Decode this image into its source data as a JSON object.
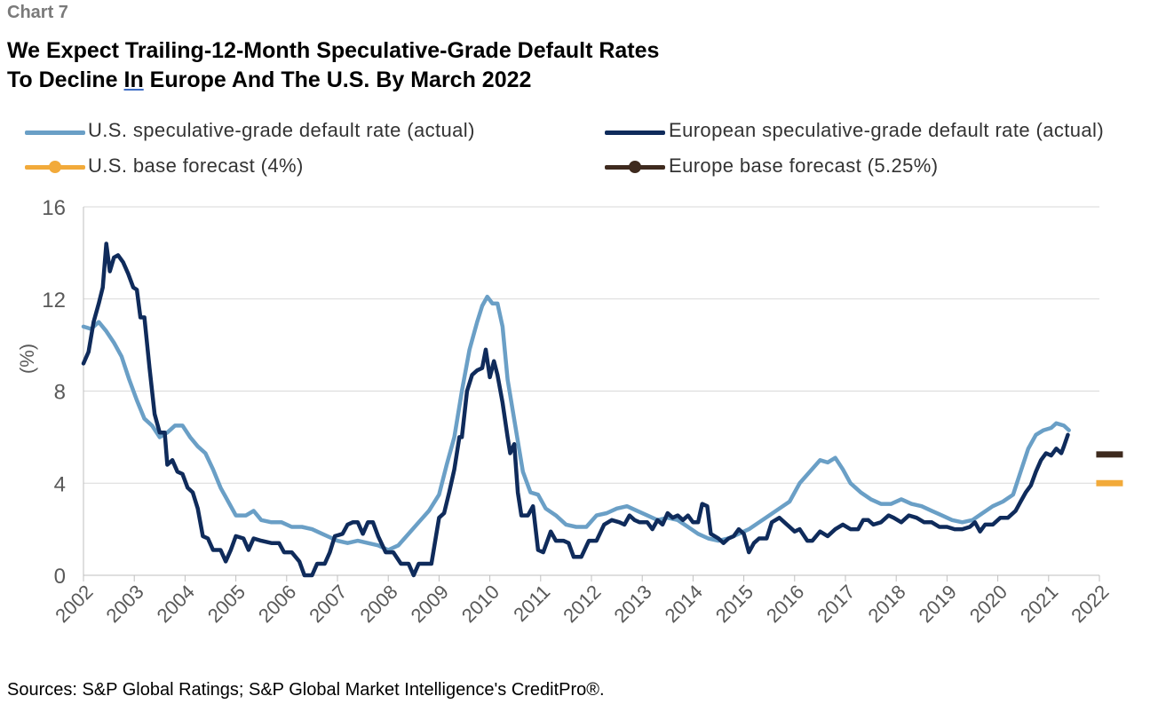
{
  "header": {
    "chart_label": "Chart 7",
    "title_line1": "We Expect Trailing-12-Month Speculative-Grade Default Rates",
    "title_line2": "To Decline In Europe And The U.S. By March 2022"
  },
  "legend": {
    "us_actual": "U.S. speculative-grade default rate (actual)",
    "eu_actual": "European speculative-grade default rate (actual)",
    "us_forecast": "U.S. base forecast (4%)",
    "eu_forecast": "Europe base forecast (5.25%)"
  },
  "footer": {
    "source": "Sources: S&P Global Ratings; S&P Global Market Intelligence's CreditPro®."
  },
  "colors": {
    "us": "#6a9fc6",
    "eu": "#0f2b5b",
    "us_forecast": "#f2aa3a",
    "eu_forecast": "#3e2a1e",
    "grid": "#d9d9d9",
    "axis_text": "#595959"
  },
  "chart_data": {
    "type": "line",
    "ylabel": "(%)",
    "xlabel": "",
    "ylim": [
      0,
      16
    ],
    "yticks": [
      0,
      4,
      8,
      12,
      16
    ],
    "xlim": [
      2002,
      2022
    ],
    "xticks": [
      2002,
      2003,
      2004,
      2005,
      2006,
      2007,
      2008,
      2009,
      2010,
      2011,
      2012,
      2013,
      2014,
      2015,
      2016,
      2017,
      2018,
      2019,
      2020,
      2021,
      2022
    ],
    "grid": true,
    "legend_position": "top",
    "series": [
      {
        "name": "U.S. speculative-grade default rate (actual)",
        "points": [
          [
            2002.0,
            10.8
          ],
          [
            2002.15,
            10.7
          ],
          [
            2002.3,
            11.0
          ],
          [
            2002.45,
            10.6
          ],
          [
            2002.6,
            10.1
          ],
          [
            2002.75,
            9.5
          ],
          [
            2002.9,
            8.5
          ],
          [
            2003.05,
            7.6
          ],
          [
            2003.2,
            6.8
          ],
          [
            2003.35,
            6.5
          ],
          [
            2003.5,
            6.0
          ],
          [
            2003.65,
            6.2
          ],
          [
            2003.8,
            6.5
          ],
          [
            2003.95,
            6.5
          ],
          [
            2004.1,
            6.0
          ],
          [
            2004.25,
            5.6
          ],
          [
            2004.4,
            5.3
          ],
          [
            2004.55,
            4.6
          ],
          [
            2004.7,
            3.8
          ],
          [
            2004.85,
            3.2
          ],
          [
            2005.0,
            2.6
          ],
          [
            2005.2,
            2.6
          ],
          [
            2005.35,
            2.8
          ],
          [
            2005.5,
            2.4
          ],
          [
            2005.7,
            2.3
          ],
          [
            2005.9,
            2.3
          ],
          [
            2006.1,
            2.1
          ],
          [
            2006.3,
            2.1
          ],
          [
            2006.5,
            2.0
          ],
          [
            2006.7,
            1.8
          ],
          [
            2006.9,
            1.6
          ],
          [
            2007.0,
            1.5
          ],
          [
            2007.2,
            1.4
          ],
          [
            2007.4,
            1.5
          ],
          [
            2007.6,
            1.4
          ],
          [
            2007.8,
            1.3
          ],
          [
            2008.0,
            1.1
          ],
          [
            2008.2,
            1.3
          ],
          [
            2008.4,
            1.8
          ],
          [
            2008.6,
            2.3
          ],
          [
            2008.8,
            2.8
          ],
          [
            2009.0,
            3.5
          ],
          [
            2009.15,
            4.8
          ],
          [
            2009.3,
            6.0
          ],
          [
            2009.45,
            8.0
          ],
          [
            2009.6,
            9.8
          ],
          [
            2009.75,
            11.0
          ],
          [
            2009.85,
            11.7
          ],
          [
            2009.95,
            12.1
          ],
          [
            2010.05,
            11.8
          ],
          [
            2010.15,
            11.8
          ],
          [
            2010.25,
            10.8
          ],
          [
            2010.35,
            8.5
          ],
          [
            2010.5,
            6.5
          ],
          [
            2010.65,
            4.5
          ],
          [
            2010.8,
            3.6
          ],
          [
            2010.95,
            3.5
          ],
          [
            2011.1,
            2.9
          ],
          [
            2011.3,
            2.6
          ],
          [
            2011.5,
            2.2
          ],
          [
            2011.7,
            2.1
          ],
          [
            2011.9,
            2.1
          ],
          [
            2012.1,
            2.6
          ],
          [
            2012.3,
            2.7
          ],
          [
            2012.5,
            2.9
          ],
          [
            2012.7,
            3.0
          ],
          [
            2012.9,
            2.8
          ],
          [
            2013.1,
            2.6
          ],
          [
            2013.3,
            2.4
          ],
          [
            2013.5,
            2.5
          ],
          [
            2013.7,
            2.4
          ],
          [
            2013.9,
            2.1
          ],
          [
            2014.1,
            1.8
          ],
          [
            2014.3,
            1.6
          ],
          [
            2014.5,
            1.5
          ],
          [
            2014.7,
            1.6
          ],
          [
            2014.9,
            1.8
          ],
          [
            2015.1,
            2.0
          ],
          [
            2015.3,
            2.3
          ],
          [
            2015.5,
            2.6
          ],
          [
            2015.7,
            2.9
          ],
          [
            2015.9,
            3.2
          ],
          [
            2016.1,
            4.0
          ],
          [
            2016.3,
            4.5
          ],
          [
            2016.5,
            5.0
          ],
          [
            2016.65,
            4.9
          ],
          [
            2016.8,
            5.1
          ],
          [
            2016.95,
            4.6
          ],
          [
            2017.1,
            4.0
          ],
          [
            2017.3,
            3.6
          ],
          [
            2017.5,
            3.3
          ],
          [
            2017.7,
            3.1
          ],
          [
            2017.9,
            3.1
          ],
          [
            2018.1,
            3.3
          ],
          [
            2018.3,
            3.1
          ],
          [
            2018.5,
            3.0
          ],
          [
            2018.7,
            2.8
          ],
          [
            2018.9,
            2.6
          ],
          [
            2019.1,
            2.4
          ],
          [
            2019.3,
            2.3
          ],
          [
            2019.5,
            2.4
          ],
          [
            2019.7,
            2.7
          ],
          [
            2019.9,
            3.0
          ],
          [
            2020.1,
            3.2
          ],
          [
            2020.3,
            3.5
          ],
          [
            2020.45,
            4.5
          ],
          [
            2020.6,
            5.5
          ],
          [
            2020.75,
            6.1
          ],
          [
            2020.9,
            6.3
          ],
          [
            2021.05,
            6.4
          ],
          [
            2021.15,
            6.6
          ],
          [
            2021.3,
            6.5
          ],
          [
            2021.4,
            6.3
          ]
        ]
      },
      {
        "name": "European speculative-grade default rate (actual)",
        "points": [
          [
            2002.0,
            9.2
          ],
          [
            2002.1,
            9.7
          ],
          [
            2002.2,
            11.0
          ],
          [
            2002.3,
            11.8
          ],
          [
            2002.38,
            12.5
          ],
          [
            2002.45,
            14.4
          ],
          [
            2002.52,
            13.2
          ],
          [
            2002.6,
            13.8
          ],
          [
            2002.68,
            13.9
          ],
          [
            2002.78,
            13.6
          ],
          [
            2002.88,
            13.1
          ],
          [
            2002.98,
            12.5
          ],
          [
            2003.05,
            12.4
          ],
          [
            2003.12,
            11.2
          ],
          [
            2003.2,
            11.2
          ],
          [
            2003.3,
            9.0
          ],
          [
            2003.4,
            7.0
          ],
          [
            2003.5,
            6.2
          ],
          [
            2003.6,
            6.2
          ],
          [
            2003.65,
            4.8
          ],
          [
            2003.75,
            5.0
          ],
          [
            2003.85,
            4.5
          ],
          [
            2003.95,
            4.4
          ],
          [
            2004.05,
            3.8
          ],
          [
            2004.15,
            3.6
          ],
          [
            2004.25,
            2.9
          ],
          [
            2004.35,
            1.7
          ],
          [
            2004.45,
            1.6
          ],
          [
            2004.55,
            1.1
          ],
          [
            2004.7,
            1.1
          ],
          [
            2004.8,
            0.6
          ],
          [
            2004.9,
            1.1
          ],
          [
            2005.0,
            1.7
          ],
          [
            2005.15,
            1.6
          ],
          [
            2005.25,
            1.1
          ],
          [
            2005.35,
            1.6
          ],
          [
            2005.5,
            1.5
          ],
          [
            2005.7,
            1.4
          ],
          [
            2005.85,
            1.4
          ],
          [
            2005.95,
            1.0
          ],
          [
            2006.1,
            1.0
          ],
          [
            2006.25,
            0.6
          ],
          [
            2006.35,
            0.0
          ],
          [
            2006.5,
            0.0
          ],
          [
            2006.6,
            0.5
          ],
          [
            2006.75,
            0.5
          ],
          [
            2006.85,
            1.0
          ],
          [
            2006.95,
            1.7
          ],
          [
            2007.1,
            1.8
          ],
          [
            2007.2,
            2.2
          ],
          [
            2007.3,
            2.3
          ],
          [
            2007.4,
            2.3
          ],
          [
            2007.5,
            1.8
          ],
          [
            2007.6,
            2.3
          ],
          [
            2007.7,
            2.3
          ],
          [
            2007.8,
            1.7
          ],
          [
            2007.95,
            1.0
          ],
          [
            2008.1,
            1.0
          ],
          [
            2008.25,
            0.5
          ],
          [
            2008.4,
            0.5
          ],
          [
            2008.5,
            0.0
          ],
          [
            2008.6,
            0.5
          ],
          [
            2008.75,
            0.5
          ],
          [
            2008.85,
            0.5
          ],
          [
            2009.0,
            2.5
          ],
          [
            2009.1,
            2.7
          ],
          [
            2009.2,
            3.6
          ],
          [
            2009.3,
            4.6
          ],
          [
            2009.4,
            6.0
          ],
          [
            2009.45,
            6.0
          ],
          [
            2009.55,
            8.0
          ],
          [
            2009.65,
            8.7
          ],
          [
            2009.75,
            8.9
          ],
          [
            2009.85,
            9.0
          ],
          [
            2009.92,
            9.8
          ],
          [
            2010.0,
            8.6
          ],
          [
            2010.08,
            9.3
          ],
          [
            2010.15,
            8.7
          ],
          [
            2010.25,
            7.5
          ],
          [
            2010.35,
            6.0
          ],
          [
            2010.4,
            5.3
          ],
          [
            2010.48,
            5.7
          ],
          [
            2010.55,
            3.6
          ],
          [
            2010.62,
            2.6
          ],
          [
            2010.75,
            2.6
          ],
          [
            2010.85,
            3.0
          ],
          [
            2010.95,
            1.1
          ],
          [
            2011.05,
            1.0
          ],
          [
            2011.2,
            1.9
          ],
          [
            2011.3,
            1.5
          ],
          [
            2011.45,
            1.5
          ],
          [
            2011.55,
            1.4
          ],
          [
            2011.65,
            0.8
          ],
          [
            2011.8,
            0.8
          ],
          [
            2011.95,
            1.5
          ],
          [
            2012.1,
            1.5
          ],
          [
            2012.25,
            2.2
          ],
          [
            2012.4,
            2.4
          ],
          [
            2012.55,
            2.3
          ],
          [
            2012.65,
            2.2
          ],
          [
            2012.75,
            2.6
          ],
          [
            2012.85,
            2.4
          ],
          [
            2012.95,
            2.3
          ],
          [
            2013.1,
            2.3
          ],
          [
            2013.2,
            2.0
          ],
          [
            2013.3,
            2.4
          ],
          [
            2013.4,
            2.2
          ],
          [
            2013.5,
            2.7
          ],
          [
            2013.6,
            2.5
          ],
          [
            2013.7,
            2.6
          ],
          [
            2013.8,
            2.4
          ],
          [
            2013.9,
            2.6
          ],
          [
            2014.0,
            2.3
          ],
          [
            2014.1,
            2.3
          ],
          [
            2014.18,
            3.1
          ],
          [
            2014.28,
            3.0
          ],
          [
            2014.35,
            1.8
          ],
          [
            2014.5,
            1.6
          ],
          [
            2014.6,
            1.4
          ],
          [
            2014.7,
            1.6
          ],
          [
            2014.8,
            1.7
          ],
          [
            2014.9,
            2.0
          ],
          [
            2015.0,
            1.8
          ],
          [
            2015.1,
            1.0
          ],
          [
            2015.2,
            1.4
          ],
          [
            2015.3,
            1.6
          ],
          [
            2015.45,
            1.6
          ],
          [
            2015.55,
            2.3
          ],
          [
            2015.7,
            2.5
          ],
          [
            2015.85,
            2.2
          ],
          [
            2016.0,
            1.9
          ],
          [
            2016.1,
            2.0
          ],
          [
            2016.25,
            1.5
          ],
          [
            2016.35,
            1.5
          ],
          [
            2016.5,
            1.9
          ],
          [
            2016.65,
            1.7
          ],
          [
            2016.8,
            2.0
          ],
          [
            2016.95,
            2.2
          ],
          [
            2017.1,
            2.0
          ],
          [
            2017.25,
            2.0
          ],
          [
            2017.35,
            2.4
          ],
          [
            2017.45,
            2.4
          ],
          [
            2017.55,
            2.2
          ],
          [
            2017.7,
            2.3
          ],
          [
            2017.85,
            2.6
          ],
          [
            2017.95,
            2.5
          ],
          [
            2018.1,
            2.3
          ],
          [
            2018.25,
            2.6
          ],
          [
            2018.4,
            2.5
          ],
          [
            2018.55,
            2.3
          ],
          [
            2018.7,
            2.3
          ],
          [
            2018.85,
            2.1
          ],
          [
            2019.0,
            2.1
          ],
          [
            2019.15,
            2.0
          ],
          [
            2019.3,
            2.0
          ],
          [
            2019.45,
            2.1
          ],
          [
            2019.55,
            2.3
          ],
          [
            2019.65,
            1.9
          ],
          [
            2019.75,
            2.2
          ],
          [
            2019.9,
            2.2
          ],
          [
            2020.05,
            2.5
          ],
          [
            2020.2,
            2.5
          ],
          [
            2020.35,
            2.8
          ],
          [
            2020.45,
            3.2
          ],
          [
            2020.55,
            3.6
          ],
          [
            2020.65,
            3.9
          ],
          [
            2020.75,
            4.5
          ],
          [
            2020.85,
            5.0
          ],
          [
            2020.95,
            5.3
          ],
          [
            2021.05,
            5.2
          ],
          [
            2021.15,
            5.5
          ],
          [
            2021.25,
            5.3
          ],
          [
            2021.3,
            5.6
          ],
          [
            2021.38,
            6.1
          ]
        ]
      }
    ],
    "forecasts": [
      {
        "name": "U.S. base forecast (4%)",
        "x": 2022.2,
        "value": 4.0
      },
      {
        "name": "Europe base forecast (5.25%)",
        "x": 2022.2,
        "value": 5.25
      }
    ]
  }
}
